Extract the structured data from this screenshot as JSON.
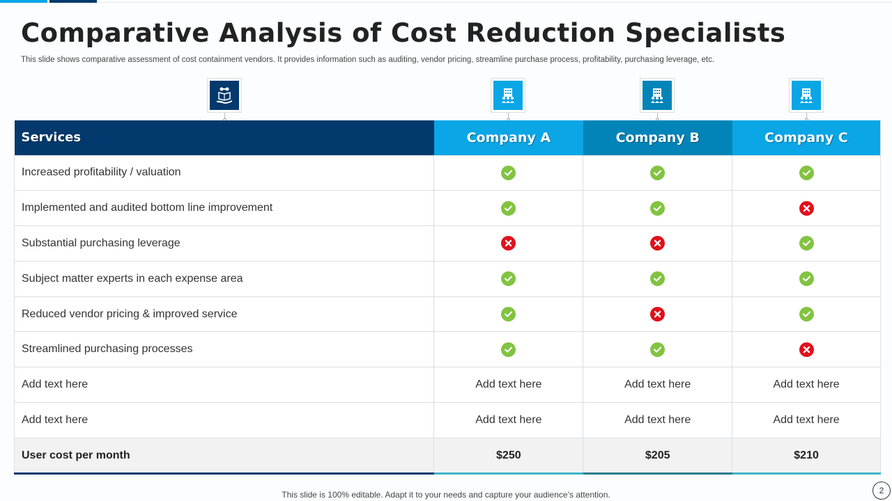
{
  "title": "Comparative Analysis of Cost Reduction Specialists",
  "subtitle": "This slide shows comparative assessment of cost containment vendors. It provides information such as auditing, vendor pricing, streamline purchase process, profitability, purchasing leverage, etc.",
  "icons": {
    "services": "service-book-hand-icon",
    "company": "office-building-people-icon"
  },
  "colors": {
    "navy": "#03396c",
    "sky": "#0aa6e6",
    "teal": "#0284b8",
    "check": "#82c341",
    "cross": "#e0111b"
  },
  "table": {
    "headers": [
      "Services",
      "Company A",
      "Company B",
      "Company C"
    ],
    "rows": [
      {
        "label": "Increased profitability / valuation",
        "values": [
          "check",
          "check",
          "check"
        ]
      },
      {
        "label": "Implemented  and audited bottom line improvement",
        "values": [
          "check",
          "check",
          "cross"
        ]
      },
      {
        "label": "Substantial purchasing leverage",
        "values": [
          "cross",
          "cross",
          "check"
        ]
      },
      {
        "label": "Subject matter experts in each expense area",
        "values": [
          "check",
          "check",
          "check"
        ]
      },
      {
        "label": "Reduced vendor pricing & improved service",
        "values": [
          "check",
          "cross",
          "check"
        ]
      },
      {
        "label": "Streamlined purchasing processes",
        "values": [
          "check",
          "check",
          "cross"
        ]
      },
      {
        "label": "Add text here",
        "values": [
          "Add text here",
          "Add text here",
          "Add text here"
        ]
      },
      {
        "label": "Add text here",
        "values": [
          "Add text here",
          "Add text here",
          "Add text here"
        ]
      }
    ],
    "cost_row": {
      "label": "User cost per month",
      "values": [
        "$250",
        "$205",
        "$210"
      ]
    }
  },
  "footer": "This slide is 100% editable. Adapt it to your needs and capture your audience’s attention.",
  "page_number": "2"
}
